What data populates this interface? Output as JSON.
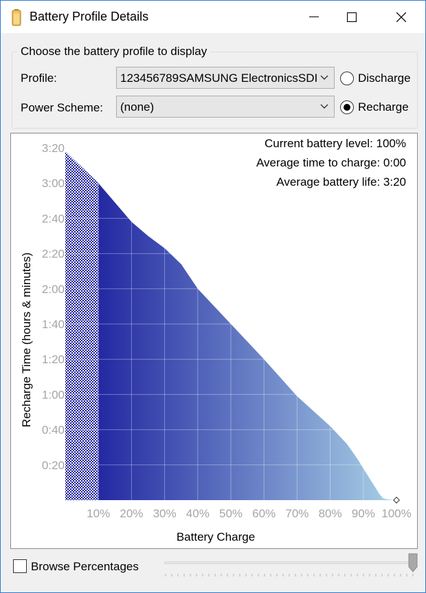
{
  "window": {
    "title": "Battery Profile Details",
    "icon": "battery-icon",
    "controls": [
      "minimize-icon",
      "maximize-icon",
      "close-icon"
    ]
  },
  "group": {
    "legend": "Choose the battery profile to display",
    "profile_label": "Profile:",
    "profile_value": "123456789SAMSUNG ElectronicsSDI",
    "scheme_label": "Power Scheme:",
    "scheme_value": "(none)",
    "discharge_label": "Discharge",
    "recharge_label": "Recharge",
    "selected_mode": "Recharge"
  },
  "chart_data": {
    "type": "area",
    "xlabel": "Battery Charge",
    "ylabel": "Recharge Time (hours & minutes)",
    "x_ticks": [
      "10%",
      "20%",
      "30%",
      "40%",
      "50%",
      "60%",
      "70%",
      "80%",
      "90%",
      "100%"
    ],
    "y_ticks": [
      "0:20",
      "0:40",
      "1:00",
      "1:20",
      "1:40",
      "2:00",
      "2:20",
      "2:40",
      "3:00",
      "3:20"
    ],
    "xlim": [
      0,
      100
    ],
    "ylim_minutes": [
      0,
      200
    ],
    "grid": true,
    "fill_gradient": [
      "#14169a",
      "#a8d0e6"
    ],
    "unknown_region_pattern": "checkerboard 0-10%",
    "series": [
      {
        "x": [
          0,
          10,
          20,
          25,
          30,
          35,
          40,
          50,
          60,
          70,
          80,
          85,
          88,
          90,
          91,
          92,
          93,
          94,
          95,
          96,
          97,
          98,
          99,
          100
        ],
        "y_minutes": [
          198,
          180,
          158,
          150,
          143,
          134,
          120,
          100,
          80,
          59,
          42,
          32,
          24,
          18,
          15,
          12,
          9,
          6,
          3,
          1,
          0.5,
          0.3,
          0.1,
          0
        ]
      }
    ],
    "annotations": [
      "Current battery level: 100%",
      "Average time to charge: 0:00",
      "Average battery life: 3:20"
    ]
  },
  "footer": {
    "browse_label": "Browse Percentages",
    "browse_checked": false,
    "slider_position": "100%"
  }
}
